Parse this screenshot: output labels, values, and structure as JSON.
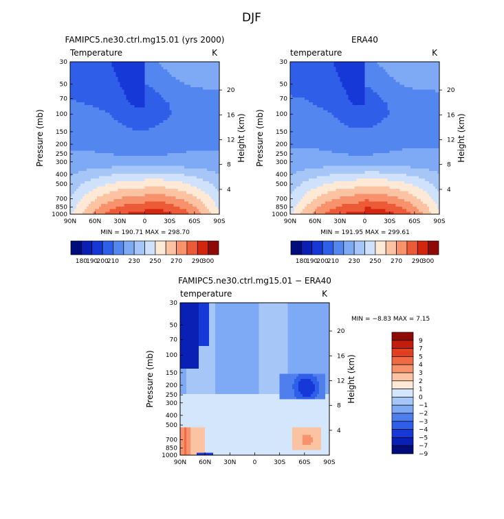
{
  "chart_data": {
    "title": "DJF",
    "panels": [
      {
        "type": "contour",
        "title": "FAMIPC5.ne30.ctrl.mg15.01 (yrs 2000)",
        "variable": "Temperature",
        "units": "K",
        "min_text": "MIN = 190.71",
        "max_text": "MAX = 298.70",
        "ylabel": "Pressure (mb)",
        "ylabel_right": "Height (km)",
        "field": "control"
      },
      {
        "type": "contour",
        "title": "ERA40",
        "variable": "temperature",
        "units": "K",
        "min_text": "MIN = 191.95",
        "max_text": "MAX = 299.61",
        "ylabel": "Pressure (mb)",
        "ylabel_right": "Height (km)",
        "field": "obs"
      },
      {
        "type": "contour",
        "title": "FAMIPC5.ne30.ctrl.mg15.01 − ERA40",
        "variable": "temperature",
        "units": "K",
        "min_text": "MIN =   −8.83",
        "max_text": "MAX =    7.15",
        "ylabel": "Pressure (mb)",
        "ylabel_right": "Height (km)",
        "field": "diff"
      }
    ],
    "x_ticks": [
      "90N",
      "60N",
      "30N",
      "0",
      "30S",
      "60S",
      "90S"
    ],
    "x_values": [
      90,
      60,
      30,
      0,
      -30,
      -60,
      -90
    ],
    "pressure_ticks": [
      "30",
      "50",
      "70",
      "100",
      "150",
      "200",
      "250",
      "300",
      "400",
      "500",
      "700",
      "850",
      "1000"
    ],
    "pressure_values": [
      30,
      50,
      70,
      100,
      150,
      200,
      250,
      300,
      400,
      500,
      700,
      850,
      1000
    ],
    "height_ticks": [
      "20",
      "16",
      "12",
      "8",
      "4"
    ],
    "height_values": [
      20,
      16,
      12,
      8,
      4
    ],
    "temp_levels": [
      180,
      190,
      200,
      210,
      220,
      230,
      240,
      250,
      260,
      270,
      280,
      290,
      300
    ],
    "temp_colorbar_labels": [
      "180",
      "190",
      "200",
      "210",
      "230",
      "250",
      "270",
      "290",
      "300"
    ],
    "temp_colors": [
      "#000c7a",
      "#0a1fb4",
      "#1638d6",
      "#2f5fe8",
      "#5386ef",
      "#7ea9f4",
      "#a6c6f8",
      "#d0e2fb",
      "#fde9d6",
      "#fbc3a2",
      "#f7926c",
      "#ed5a37",
      "#d3250f",
      "#8f0a07"
    ],
    "diff_levels": [
      -9,
      -7,
      -5,
      -4,
      -3,
      -2,
      -1,
      0,
      1,
      2,
      3,
      4,
      5,
      7,
      9
    ],
    "diff_colorbar_labels": [
      "9",
      "7",
      "5",
      "4",
      "3",
      "2",
      "1",
      "0",
      "−1",
      "−2",
      "−3",
      "−4",
      "−5",
      "−7",
      "−9"
    ],
    "diff_colors": [
      "#000c7a",
      "#0a1fb4",
      "#1638d6",
      "#2f5fe8",
      "#4f7eed",
      "#7ea9f4",
      "#a6c6f8",
      "#d4e6fc",
      "#fde9d6",
      "#fbc3a2",
      "#f7926c",
      "#ef6a45",
      "#e0401f",
      "#c21d0d",
      "#8f0a07"
    ]
  }
}
